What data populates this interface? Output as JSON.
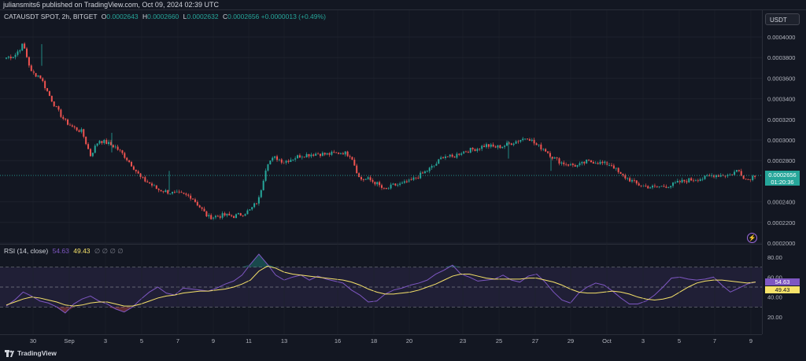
{
  "header": {
    "published_text": "juliansmits6 published on TradingView.com, Oct 09, 2024 02:39 UTC"
  },
  "legend": {
    "symbol": "CATAUSDT SPOT, 2h, BITGET",
    "open_label": "O",
    "open": "0.0002643",
    "high_label": "H",
    "high": "0.0002660",
    "low_label": "L",
    "low": "0.0002632",
    "close_label": "C",
    "close": "0.0002656",
    "change": "+0.0000013 (+0.49%)"
  },
  "currency_button": "USDT",
  "price_tag": {
    "price": "0.0002656",
    "countdown": "01:20:36"
  },
  "rsi": {
    "label": "RSI (14, close)",
    "value": "54.63",
    "ma_value": "49.43",
    "na_values": "∅ ∅ ∅ ∅"
  },
  "footer": {
    "brand": "TradingView"
  },
  "colors": {
    "up": "#26a69a",
    "down": "#ef5350",
    "rsi": "#7e57c2",
    "rsi_ma": "#f7e36a",
    "background": "#131722"
  },
  "icons": {
    "alert": "lightning-bolt-icon",
    "brand": "tradingview-logo-icon"
  },
  "chart_data": [
    {
      "type": "candlestick",
      "title": "CATAUSDT SPOT, 2h, BITGET",
      "x_tick_labels": [
        "30",
        "Sep",
        "3",
        "5",
        "7",
        "9",
        "11",
        "13",
        "16",
        "18",
        "20",
        "23",
        "25",
        "27",
        "29",
        "Oct",
        "3",
        "5",
        "7",
        "9"
      ],
      "y_tick_labels": [
        "0.0004000",
        "0.0003800",
        "0.0003600",
        "0.0003400",
        "0.0003200",
        "0.0003000",
        "0.0002800",
        "0.0002400",
        "0.0002200",
        "0.0002000"
      ],
      "ylim": [
        0.0002,
        0.0004
      ],
      "close_path": [
        [
          0.00038,
          0.000382,
          0.000393,
          0.000365,
          0.000362
        ],
        [
          0.000345,
          0.00033,
          0.000318,
          0.000312,
          0.000308
        ],
        [
          0.000285,
          0.0003,
          0.000297,
          0.000293,
          0.000285
        ],
        [
          0.000275,
          0.000263,
          0.000258,
          0.000252,
          0.00025
        ],
        [
          0.000248,
          0.000247,
          0.000245,
          0.000235,
          0.000225
        ],
        [
          0.000226,
          0.000227,
          0.000226,
          0.000228,
          0.000232
        ],
        [
          0.000242,
          0.000278,
          0.000283,
          0.000279,
          0.000282
        ],
        [
          0.000285,
          0.000286,
          0.000287,
          0.000286,
          0.000287
        ],
        [
          0.000288,
          0.000285,
          0.000262,
          0.000262,
          0.000258
        ],
        [
          0.000251,
          0.000256,
          0.000257,
          0.00026,
          0.000265
        ],
        [
          0.00027,
          0.000276,
          0.000285,
          0.000283,
          0.000288
        ],
        [
          0.00029,
          0.000292,
          0.000295,
          0.000293,
          0.000294
        ],
        [
          0.000297,
          0.0003,
          0.000303,
          0.000295,
          0.000291
        ],
        [
          0.000283,
          0.000278,
          0.000276,
          0.000275,
          0.000279
        ],
        [
          0.000279,
          0.000277,
          0.000276,
          0.000266,
          0.000262
        ],
        [
          0.000257,
          0.000255,
          0.000254,
          0.000255,
          0.000256
        ],
        [
          0.000259,
          0.000261,
          0.000262,
          0.000263,
          0.000266
        ],
        [
          0.000266,
          0.000266,
          0.000271,
          0.000261,
          0.000266
        ]
      ]
    },
    {
      "type": "line",
      "title": "RSI (14, close)",
      "y_tick_labels": [
        "80.00",
        "60.00",
        "40.00",
        "20.00"
      ],
      "ylim": [
        15,
        85
      ],
      "bands": [
        70,
        50,
        30
      ],
      "series": [
        {
          "name": "RSI",
          "values": [
            31,
            37,
            45,
            41,
            36,
            34,
            30,
            24,
            33,
            38,
            41,
            36,
            33,
            28,
            25,
            30,
            38,
            45,
            50,
            44,
            42,
            49,
            48,
            47,
            46,
            49,
            53,
            56,
            62,
            73,
            83,
            73,
            62,
            57,
            60,
            62,
            57,
            61,
            58,
            56,
            54,
            47,
            42,
            35,
            36,
            43,
            47,
            49,
            52,
            54,
            57,
            63,
            67,
            72,
            63,
            60,
            56,
            57,
            58,
            62,
            57,
            55,
            61,
            63,
            55,
            45,
            37,
            34,
            44,
            50,
            54,
            52,
            46,
            39,
            33,
            33,
            36,
            42,
            50,
            59,
            60,
            58,
            57,
            58,
            60,
            52,
            45,
            49,
            53,
            55
          ]
        },
        {
          "name": "MA",
          "values": [
            32,
            35,
            38,
            40,
            39,
            37,
            35,
            32,
            31,
            32,
            34,
            35,
            35,
            33,
            31,
            31,
            33,
            36,
            39,
            41,
            42,
            44,
            45,
            46,
            46,
            47,
            48,
            50,
            53,
            57,
            66,
            71,
            69,
            65,
            63,
            62,
            61,
            60,
            59,
            58,
            57,
            55,
            52,
            48,
            45,
            43,
            43,
            44,
            45,
            47,
            50,
            53,
            57,
            61,
            63,
            63,
            61,
            59,
            58,
            58,
            58,
            58,
            59,
            59,
            57,
            55,
            52,
            48,
            45,
            44,
            44,
            45,
            46,
            45,
            43,
            40,
            38,
            37,
            38,
            40,
            45,
            50,
            54,
            56,
            57,
            57,
            56,
            55,
            54,
            55
          ]
        }
      ]
    }
  ]
}
